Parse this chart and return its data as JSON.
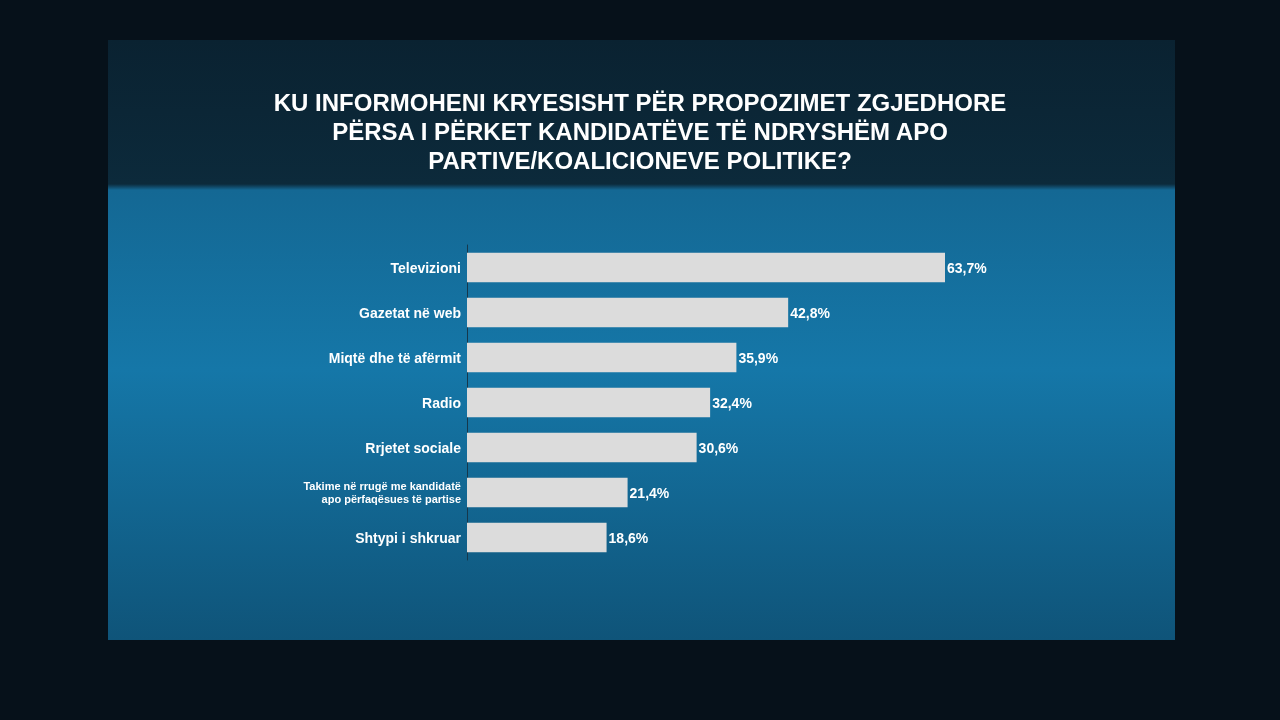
{
  "chart_data": {
    "type": "bar",
    "orientation": "horizontal",
    "title": "KU INFORMOHENI KRYESISHT PËR PROPOZIMET ZGJEDHORE PËRSA I PËRKET KANDIDATËVE TË NDRYSHËM APO PARTIVE/KOALICIONEVE POLITIKE?",
    "categories": [
      "Televizioni",
      "Gazetat në web",
      "Miqtë dhe të afërmit",
      "Radio",
      "Rrjetet sociale",
      "Takime në rrugë me kandidatë apo përfaqësues të partise",
      "Shtypi i shkruar"
    ],
    "values": [
      63.7,
      42.8,
      35.9,
      32.4,
      30.6,
      21.4,
      18.6
    ],
    "value_labels": [
      "63,7%",
      "42,8%",
      "35,9%",
      "32,4%",
      "30,6%",
      "21,4%",
      "18,6%"
    ],
    "color": "#dcdcdc",
    "tick_labels": "y",
    "grid": false
  }
}
